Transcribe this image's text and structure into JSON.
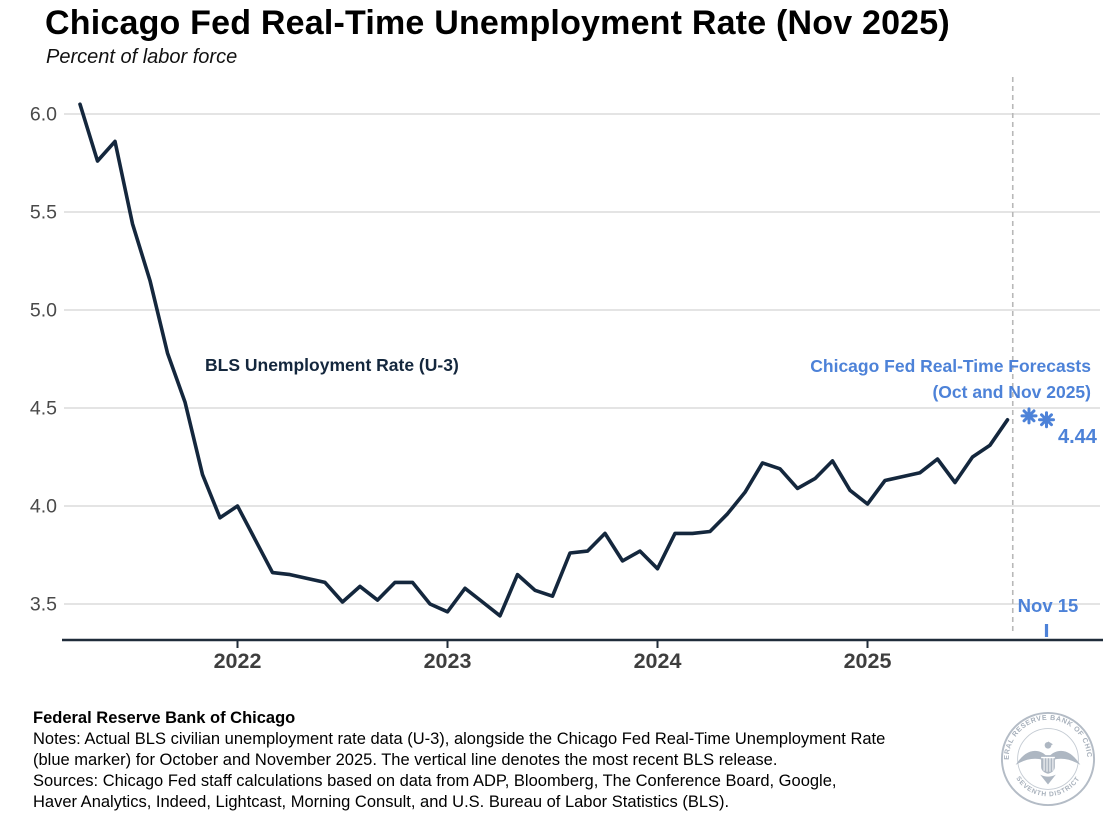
{
  "header": {
    "title": "Chicago Fed Real-Time Unemployment Rate (Nov 2025)",
    "subtitle": "Percent of labor force"
  },
  "colors": {
    "series_navy": "#14273D",
    "accent_blue": "#4D82D8",
    "gridline_gray": "#DBDBDB",
    "axis_dark": "#202C3A",
    "ytick_label_gray": "#4A4A4A",
    "xtick_label_gray": "#3E3E3E",
    "divider_gray": "#B8B8B8",
    "seal_gray": "#AEB7C2"
  },
  "chart_data": {
    "type": "line",
    "title": "Chicago Fed Real-Time Unemployment Rate (Nov 2025)",
    "ylabel": "Percent of labor force",
    "ylim": [
      3.3,
      6.15
    ],
    "yticks": [
      "3.5",
      "4.0",
      "4.5",
      "5.0",
      "5.5",
      "6.0"
    ],
    "grid": "horizontal-only",
    "x_frequency": "monthly",
    "x_start": "2021-04",
    "x_end": "2025-09",
    "xtick_years": [
      "2022",
      "2023",
      "2024",
      "2025"
    ],
    "series": [
      {
        "name": "BLS Unemployment Rate (U-3)",
        "color": "#14273D",
        "months": [
          "2021-04",
          "2021-05",
          "2021-06",
          "2021-07",
          "2021-08",
          "2021-09",
          "2021-10",
          "2021-11",
          "2021-12",
          "2022-01",
          "2022-02",
          "2022-03",
          "2022-04",
          "2022-05",
          "2022-06",
          "2022-07",
          "2022-08",
          "2022-09",
          "2022-10",
          "2022-11",
          "2022-12",
          "2023-01",
          "2023-02",
          "2023-03",
          "2023-04",
          "2023-05",
          "2023-06",
          "2023-07",
          "2023-08",
          "2023-09",
          "2023-10",
          "2023-11",
          "2023-12",
          "2024-01",
          "2024-02",
          "2024-03",
          "2024-04",
          "2024-05",
          "2024-06",
          "2024-07",
          "2024-08",
          "2024-09",
          "2024-10",
          "2024-11",
          "2024-12",
          "2025-01",
          "2025-02",
          "2025-03",
          "2025-04",
          "2025-05",
          "2025-06",
          "2025-07",
          "2025-08",
          "2025-09"
        ],
        "values": [
          6.05,
          5.76,
          5.86,
          5.44,
          5.15,
          4.78,
          4.53,
          4.16,
          3.94,
          4.0,
          3.83,
          3.66,
          3.65,
          3.63,
          3.61,
          3.51,
          3.59,
          3.52,
          3.61,
          3.61,
          3.5,
          3.46,
          3.58,
          3.51,
          3.44,
          3.65,
          3.57,
          3.54,
          3.76,
          3.77,
          3.86,
          3.72,
          3.77,
          3.68,
          3.86,
          3.86,
          3.87,
          3.96,
          4.07,
          4.22,
          4.19,
          4.09,
          4.14,
          4.23,
          4.08,
          4.01,
          4.13,
          4.15,
          4.17,
          4.24,
          4.12,
          4.25,
          4.31,
          4.44
        ]
      }
    ],
    "forecasts": {
      "name": "Chicago Fed Real-Time Forecasts (Oct and Nov 2025)",
      "marker": "asterisk",
      "color": "#4D82D8",
      "points": [
        {
          "month": "2025-10",
          "value": 4.46
        },
        {
          "month": "2025-11",
          "value": 4.44
        }
      ],
      "value_label": "4.44"
    },
    "release_divider": {
      "style": "dashed-vertical",
      "month": "2025-09",
      "offset_months": 0.3,
      "meaning": "most recent BLS release"
    },
    "forecast_date_tick": {
      "label": "Nov 15",
      "month": "2025-11",
      "color": "#4D82D8"
    }
  },
  "annotations": {
    "series_label": "BLS Unemployment Rate (U-3)",
    "forecast_label_line1": "Chicago Fed Real-Time Forecasts",
    "forecast_label_line2": "(Oct and Nov 2025)",
    "forecast_value": "4.44",
    "release_date_label": "Nov 15"
  },
  "footer": {
    "brand": "Federal Reserve Bank of Chicago",
    "lines": [
      "Notes: Actual BLS civilian unemployment rate data (U-3), alongside the Chicago Fed Real-Time Unemployment Rate",
      "(blue marker) for October and November 2025. The vertical line denotes the most recent BLS release.",
      "Sources: Chicago Fed staff calculations based on data from ADP, Bloomberg, The Conference Board, Google,",
      "Haver Analytics, Indeed, Lightcast, Morning Consult, and U.S. Bureau of Labor Statistics (BLS)."
    ],
    "seal": {
      "top_text": "FEDERAL RESERVE BANK OF CHICAGO",
      "bottom_text": "SEVENTH DISTRICT"
    }
  }
}
